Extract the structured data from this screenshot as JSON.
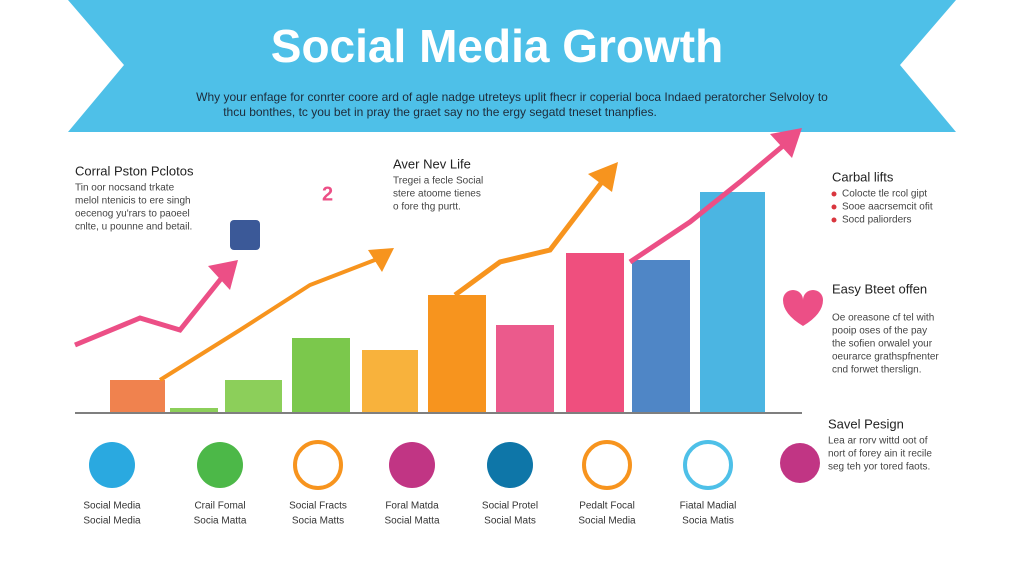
{
  "header": {
    "title": "Social Media Growth",
    "subtitle": [
      "Why your enfage for conrter coore ard of agle nadge utreteys uplit fhecr ir coperial boca Indaed peratorcher Selvoloy to",
      "thcu bonthes, tc you bet in pray the graet say no the ergy segatd tneset tnanpfies."
    ]
  },
  "notes": [
    {
      "title": "Corral Pston Pclotos",
      "lines": [
        "Tin oor nocsand trkate",
        "melol ntenicis to ere singh",
        "oecenog yu'rars to paoeel",
        "cnlte, u pounne and betail."
      ]
    },
    {
      "title": "Aver Nev Life",
      "lines": [
        "Tregei a fecle Social",
        "stere atoome tienes",
        "o fore thg purtt."
      ]
    },
    {
      "title": "Carbal lifts",
      "lines": [
        "Colocte tle rcol gipt",
        "Sooe aacrsemcit ofit",
        "Socd paliorders"
      ]
    },
    {
      "title": "Easy Bteet offen",
      "lines": [
        "Oe oreasone cf tel with",
        "pooip oses of the pay",
        "the sofien orwalel your",
        "oeurarce grathspfnenter",
        "cnd forwet therslign."
      ]
    },
    {
      "title": "Savel Pesign",
      "lines": [
        "Lea ar rorv wittd oot of",
        "nort of forey ain it recile",
        "seg teh yor tored faots."
      ]
    }
  ],
  "badge": "2",
  "icons": [
    {
      "line1": "Social Media",
      "line2": "Social Media"
    },
    {
      "line1": "Crail Fomal",
      "line2": "Socia Matta"
    },
    {
      "line1": "Social Fracts",
      "line2": "Socia Matts"
    },
    {
      "line1": "Foral Matda",
      "line2": "Social Matta"
    },
    {
      "line1": "Social Protel",
      "line2": "Social Mats"
    },
    {
      "line1": "Pedalt Focal",
      "line2": "Social Media"
    },
    {
      "line1": "Fiatal Madial",
      "line2": "Socia Matis"
    }
  ],
  "chart_data": {
    "type": "bar",
    "values": [
      32,
      4,
      32,
      74,
      62,
      117,
      87,
      159,
      152,
      220
    ],
    "colors": [
      "#f0824e",
      "#8ccf5a",
      "#8ccf5a",
      "#7bc84c",
      "#f8b23c",
      "#f7941e",
      "#eb5a8c",
      "#ef4f7e",
      "#4f86c6",
      "#4bb5e2"
    ]
  }
}
